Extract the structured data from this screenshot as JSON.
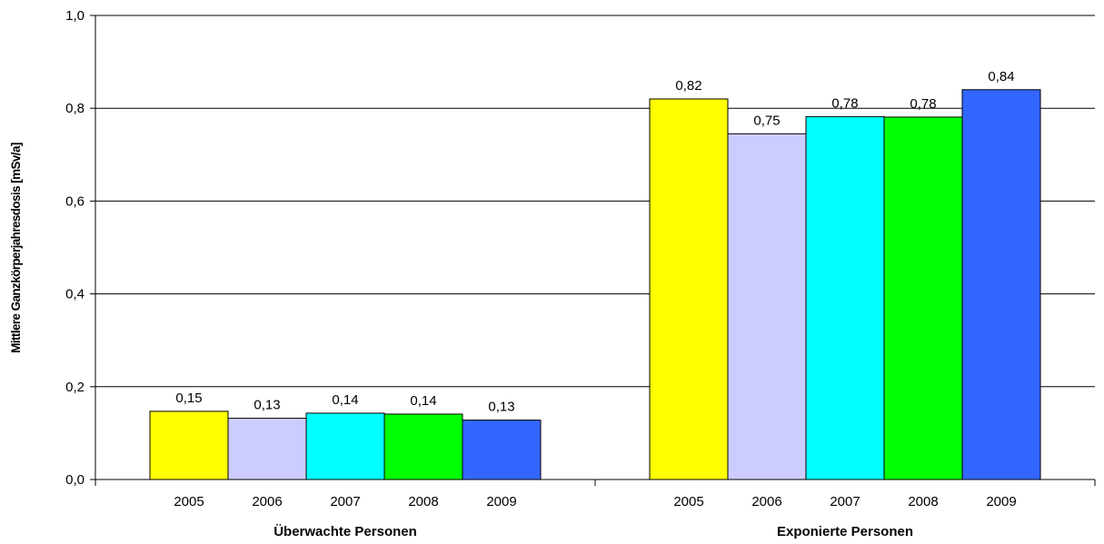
{
  "chart_data": {
    "type": "bar",
    "ylabel": "Mittlere Ganzkörperjahresdosis [mSv/a]",
    "ylim": [
      0,
      1.0
    ],
    "yticks": [
      "0,0",
      "0,2",
      "0,4",
      "0,6",
      "0,8",
      "1,0"
    ],
    "ytick_values": [
      0,
      0.2,
      0.4,
      0.6,
      0.8,
      1.0
    ],
    "grid": true,
    "legend": "none",
    "groups": [
      {
        "label": "Überwachte Personen",
        "bars": [
          {
            "category": "2005",
            "value": 0.147,
            "label": "0,15",
            "color": "#FFFF00"
          },
          {
            "category": "2006",
            "value": 0.132,
            "label": "0,13",
            "color": "#CCCCFF"
          },
          {
            "category": "2007",
            "value": 0.143,
            "label": "0,14",
            "color": "#00FFFF"
          },
          {
            "category": "2008",
            "value": 0.141,
            "label": "0,14",
            "color": "#00FF00"
          },
          {
            "category": "2009",
            "value": 0.128,
            "label": "0,13",
            "color": "#3366FF"
          }
        ]
      },
      {
        "label": "Exponierte Personen",
        "bars": [
          {
            "category": "2005",
            "value": 0.82,
            "label": "0,82",
            "color": "#FFFF00"
          },
          {
            "category": "2006",
            "value": 0.745,
            "label": "0,75",
            "color": "#CCCCFF"
          },
          {
            "category": "2007",
            "value": 0.782,
            "label": "0,78",
            "color": "#00FFFF"
          },
          {
            "category": "2008",
            "value": 0.781,
            "label": "0,78",
            "color": "#00FF00"
          },
          {
            "category": "2009",
            "value": 0.84,
            "label": "0,84",
            "color": "#3366FF"
          }
        ]
      }
    ]
  }
}
